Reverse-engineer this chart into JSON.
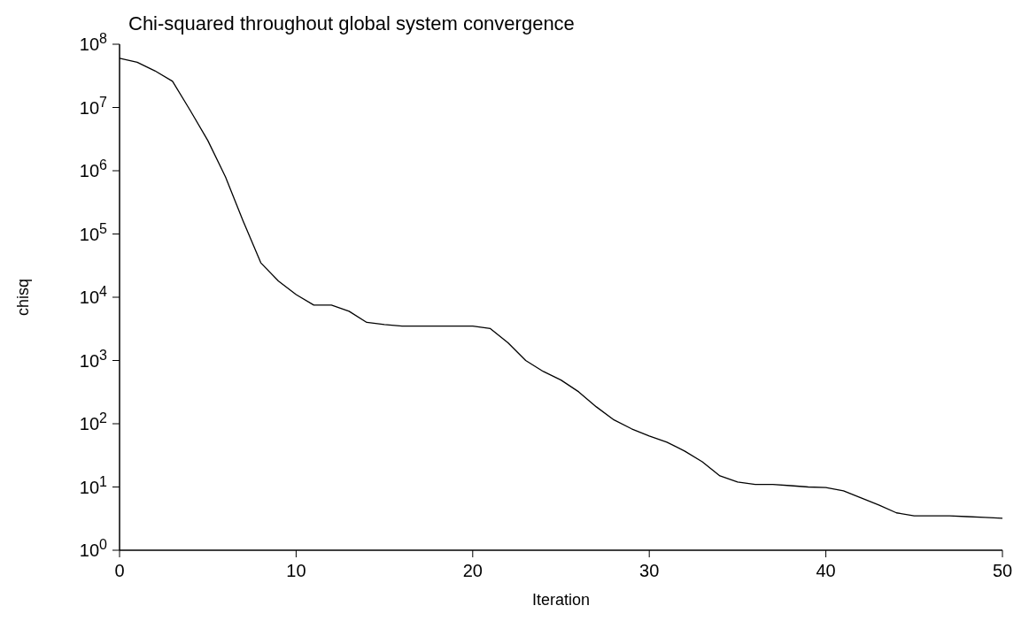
{
  "chart_data": {
    "type": "line",
    "title": "Chi-squared throughout global system convergence",
    "xlabel": "Iteration",
    "ylabel": "chisq",
    "log": "y",
    "grid": false,
    "marker": "none",
    "line_style": "solid",
    "x": [
      0,
      1,
      2,
      3,
      4,
      5,
      6,
      7,
      8,
      9,
      10,
      11,
      12,
      13,
      14,
      15,
      16,
      17,
      18,
      19,
      20,
      21,
      22,
      23,
      24,
      25,
      26,
      27,
      28,
      29,
      30,
      31,
      32,
      33,
      34,
      35,
      36,
      37,
      38,
      39,
      40,
      41,
      42,
      43,
      44,
      45,
      46,
      47,
      48,
      49,
      50
    ],
    "series": [
      {
        "color": "#000000",
        "values": [
          60000000,
          52000000,
          38000000,
          26000000,
          9000000,
          3000000,
          800000,
          160000,
          35000,
          18000,
          11000,
          7500,
          7500,
          6000,
          4000,
          3700,
          3500,
          3500,
          3500,
          3500,
          3500,
          3200,
          1900,
          1000,
          670,
          490,
          320,
          185,
          115,
          83,
          64,
          51,
          37,
          25,
          15,
          12,
          11,
          11,
          10.5,
          10,
          9.8,
          8.7,
          6.7,
          5.2,
          3.9,
          3.5,
          3.5,
          3.5,
          3.4,
          3.3,
          3.2
        ]
      }
    ],
    "xlim": [
      0,
      50
    ],
    "xticks": [
      0,
      10,
      20,
      30,
      40,
      50
    ],
    "ylim": [
      1,
      100000000
    ],
    "yticks": [
      {
        "value": 1,
        "label": "10$^{0}$"
      },
      {
        "value": 10,
        "label": "10$^{1}$"
      },
      {
        "value": 100,
        "label": "10$^{2}$"
      },
      {
        "value": 1000,
        "label": "10$^{3}$"
      },
      {
        "value": 10000,
        "label": "10$^{4}$"
      },
      {
        "value": 100000,
        "label": "10$^{5}$"
      },
      {
        "value": 1000000,
        "label": "10$^{6}$"
      },
      {
        "value": 10000000,
        "label": "10$^{7}$"
      },
      {
        "value": 100000000,
        "label": "10$^{8}$"
      }
    ]
  }
}
